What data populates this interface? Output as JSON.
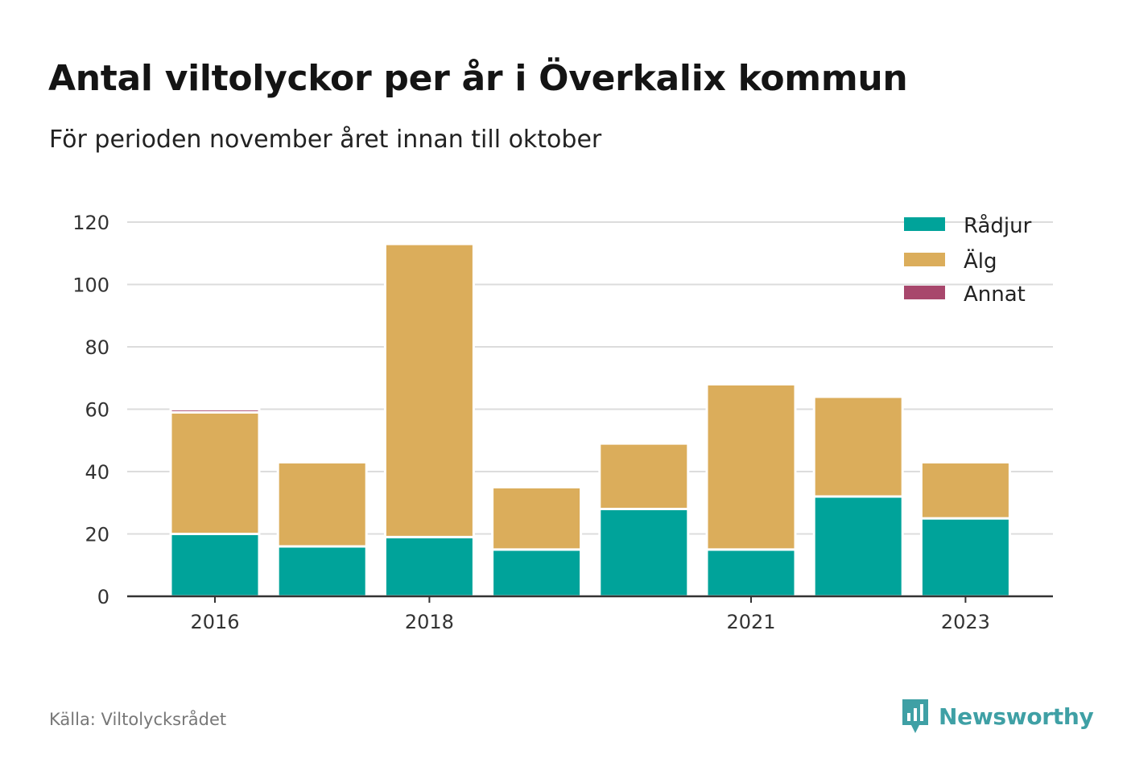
{
  "title": "Antal viltolyckor per år i Överkalix kommun",
  "subtitle": "För perioden november året innan till oktober",
  "source": "Källa: Viltolycksrådet",
  "brand": {
    "name": "Newsworthy",
    "icon": "newsworthy-logo-icon",
    "color": "#3fa0a5"
  },
  "chart_data": {
    "type": "bar",
    "stacked": true,
    "title": "",
    "xlabel": "",
    "ylabel": "",
    "categories": [
      "2016",
      "2017",
      "2018",
      "2019",
      "2020",
      "2021",
      "2022",
      "2023"
    ],
    "x_tick_labels": [
      "2016",
      "",
      "2018",
      "",
      "",
      "2021",
      "",
      "2023"
    ],
    "y_ticks": [
      0,
      20,
      40,
      60,
      80,
      100,
      120
    ],
    "ylim": [
      0,
      120
    ],
    "grid": true,
    "legend_position": "top-right",
    "series": [
      {
        "name": "Rådjur",
        "color": "#00a39a",
        "values": [
          20,
          16,
          19,
          15,
          28,
          15,
          32,
          25
        ]
      },
      {
        "name": "Älg",
        "color": "#dbad5b",
        "values": [
          39,
          27,
          94,
          20,
          21,
          53,
          32,
          18
        ]
      },
      {
        "name": "Annat",
        "color": "#a8476c",
        "values": [
          1,
          0,
          0,
          0,
          0,
          0,
          0,
          0
        ]
      }
    ]
  }
}
